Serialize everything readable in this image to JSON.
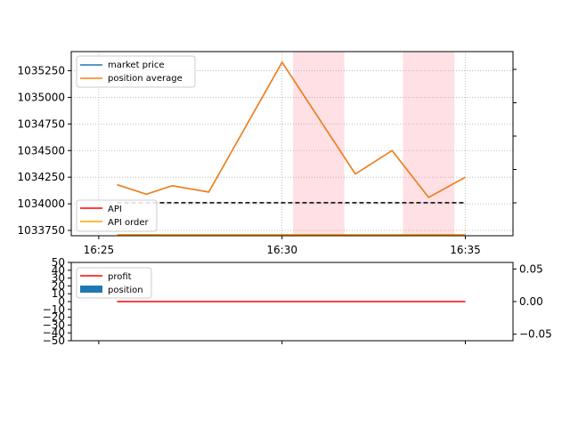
{
  "chart_data": [
    {
      "type": "line",
      "x_ticks": [
        "16:25",
        "16:30",
        "16:35"
      ],
      "y_ticks": [
        1033750,
        1034000,
        1034250,
        1034500,
        1034750,
        1035000,
        1035250
      ],
      "ylim": [
        1033700,
        1035430
      ],
      "xlim_minutes": [
        -0.75,
        11.3
      ],
      "grid": true,
      "legend_placement_top": "upper-left",
      "legend_placement_bottom": "lower-left",
      "highlight_spans_minutes": [
        [
          5.3,
          6.7
        ],
        [
          8.3,
          9.7
        ]
      ],
      "dashed_line": {
        "value": 1034010,
        "from_minute": 0.5,
        "to_minute": 10.0
      },
      "series": [
        {
          "name": "market price",
          "color": "#1f77b4",
          "x_minutes": [
            0.5,
            1.3,
            2.0,
            3.0,
            5.0,
            7.0,
            8.0,
            9.0,
            10.0
          ],
          "values": [
            1034180,
            1034090,
            1034170,
            1034110,
            1035330,
            1034280,
            1034500,
            1034060,
            1034250
          ]
        },
        {
          "name": "position average",
          "color": "#ff7f0e",
          "x_minutes": [
            0.5,
            1.3,
            2.0,
            3.0,
            5.0,
            7.0,
            8.0,
            9.0,
            10.0
          ],
          "values": [
            1034180,
            1034090,
            1034170,
            1034110,
            1035330,
            1034280,
            1034500,
            1034060,
            1034250
          ]
        },
        {
          "name": "API",
          "color": "#ff0000",
          "x_minutes": [
            0.5,
            10.0
          ],
          "values": [
            1033700,
            1033700
          ]
        },
        {
          "name": "API order",
          "color": "#ffa500",
          "x_minutes": [
            0.5,
            10.0
          ],
          "values": [
            1033700,
            1033700
          ]
        }
      ],
      "right_axis_ticks": 5
    },
    {
      "type": "line",
      "y_ticks": [
        -50,
        -40,
        -30,
        -20,
        -10,
        0,
        10,
        20,
        30,
        40,
        50
      ],
      "y_tick_labels": [
        "−50",
        "−40",
        "−30",
        "−20",
        "−10",
        "0",
        "10",
        "20",
        "30",
        "40",
        "50"
      ],
      "ylim": [
        -50,
        50
      ],
      "right_y_ticks": [
        0.05,
        0.0,
        -0.05
      ],
      "right_y_tick_labels": [
        "0.05",
        "0.00",
        "−0.05"
      ],
      "right_ylim": [
        -0.06,
        0.06
      ],
      "legend_placement": "upper-left",
      "series": [
        {
          "name": "profit",
          "color": "#ff0000",
          "x_minutes": [
            0.5,
            10.0
          ],
          "values": [
            0,
            0
          ]
        },
        {
          "name": "position",
          "color": "#1f77b4",
          "type": "bar",
          "values": []
        }
      ]
    }
  ]
}
